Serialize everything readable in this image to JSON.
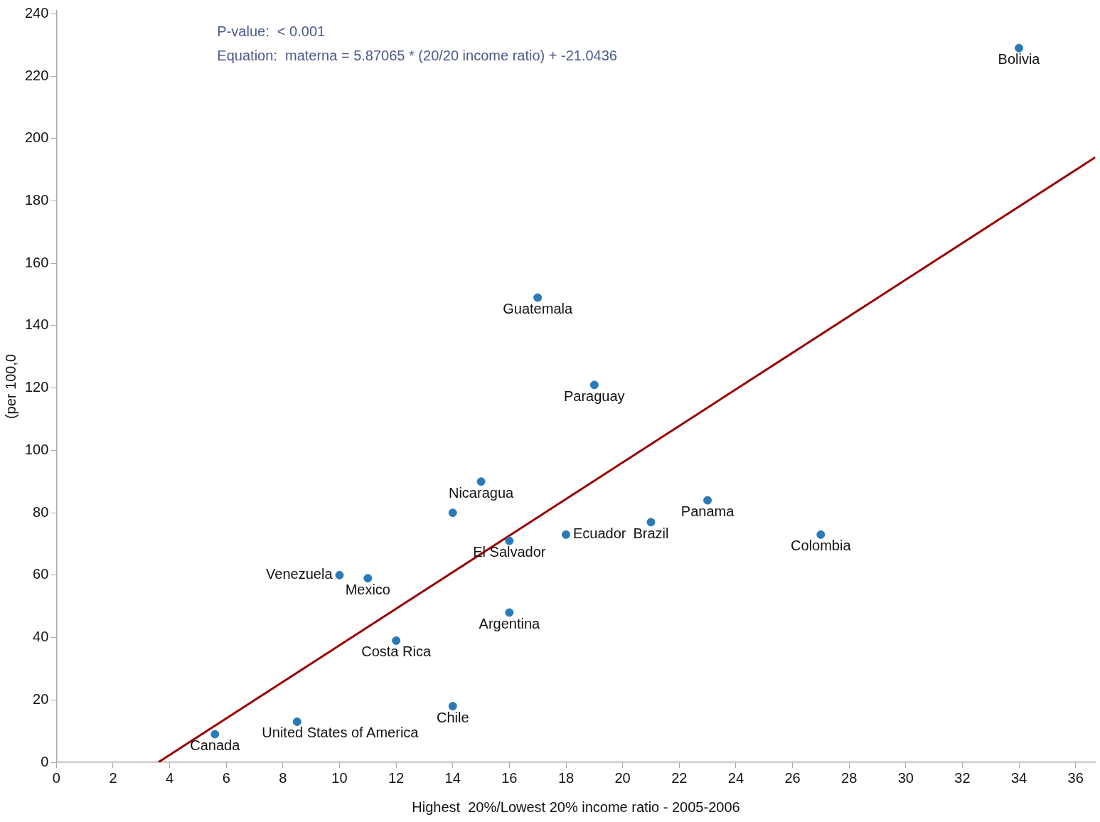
{
  "chart_data": {
    "type": "scatter",
    "xlabel": "Highest  20%/Lowest 20% income ratio - 2005-2006",
    "ylabel": "(per 100,0",
    "xlim": [
      0,
      36.7
    ],
    "ylim": [
      0,
      241
    ],
    "xticks": [
      0,
      2,
      4,
      6,
      8,
      10,
      12,
      14,
      16,
      18,
      20,
      22,
      24,
      26,
      28,
      30,
      32,
      34,
      36
    ],
    "yticks": [
      0,
      20,
      40,
      60,
      80,
      100,
      120,
      140,
      160,
      180,
      200,
      220,
      240
    ],
    "grid": false,
    "legend": false,
    "series": [
      {
        "marker": "circle",
        "color": "#2a7ab9",
        "x": [
          34,
          17,
          19,
          15,
          14,
          16,
          18,
          21,
          23,
          27,
          10,
          11,
          16,
          12,
          14,
          8.5,
          5.6
        ],
        "values": [
          229,
          149,
          121,
          90,
          80,
          71,
          73,
          77,
          84,
          73,
          60,
          59,
          48,
          39,
          18,
          13,
          9
        ]
      },
      {
        "type": "line",
        "marker": "none",
        "color": "#990000",
        "x": [
          3.6,
          36.7
        ],
        "values": [
          0,
          194
        ]
      }
    ],
    "annotations": [
      "P-value:  < 0.001",
      "Equation:  materna = 5.87065 * (20/20 income ratio) + -21.0436",
      {
        "text": "Bolivia",
        "x": 34,
        "y": 229
      },
      {
        "text": "Guatemala",
        "x": 17,
        "y": 149
      },
      {
        "text": "Paraguay",
        "x": 19,
        "y": 121
      },
      {
        "text": "Nicaragua",
        "x": 15,
        "y": 90
      },
      {
        "text": "El Salvador",
        "x": 16,
        "y": 71
      },
      {
        "text": "Ecuador",
        "x": 18,
        "y": 73
      },
      {
        "text": "Brazil",
        "x": 21,
        "y": 77
      },
      {
        "text": "Panama",
        "x": 23,
        "y": 84
      },
      {
        "text": "Colombia",
        "x": 27,
        "y": 73
      },
      {
        "text": "Venezuela",
        "x": 10,
        "y": 60
      },
      {
        "text": "Mexico",
        "x": 11,
        "y": 59
      },
      {
        "text": "Argentina",
        "x": 16,
        "y": 48
      },
      {
        "text": "Costa Rica",
        "x": 12,
        "y": 39
      },
      {
        "text": "Chile",
        "x": 14,
        "y": 18
      },
      {
        "text": "United States of America",
        "x": 8.5,
        "y": 13
      },
      {
        "text": "Canada",
        "x": 5.6,
        "y": 9
      }
    ]
  }
}
